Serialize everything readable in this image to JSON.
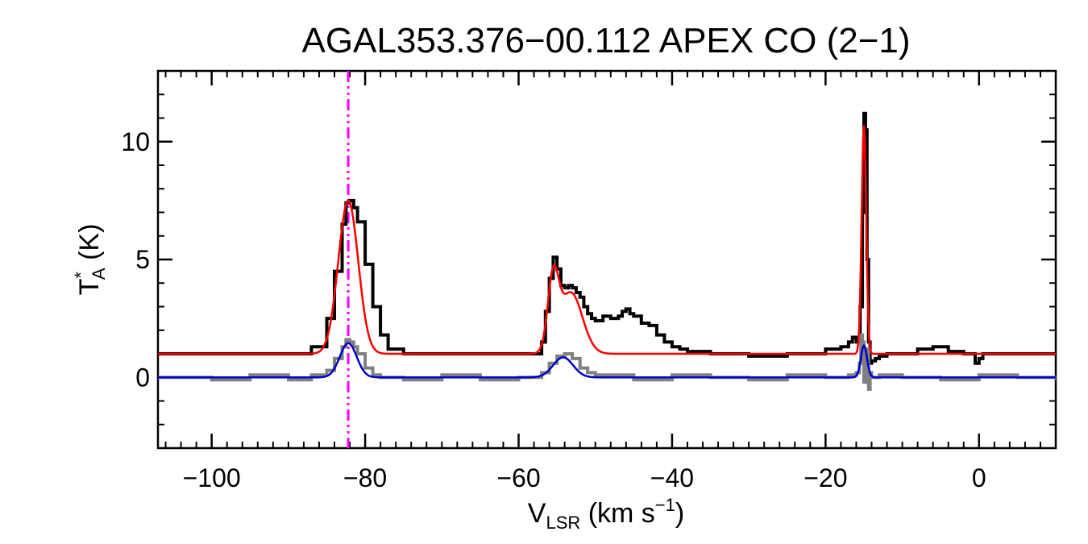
{
  "chart_data": {
    "type": "line",
    "title": "AGAL353.376−00.112  APEX CO (2−1)",
    "xlabel": {
      "main": "V",
      "sub": "LSR",
      "rest": " (km s",
      "sup": "−1",
      "close": ")"
    },
    "ylabel": {
      "main": "T",
      "sup": "*",
      "sub": "A",
      "rest": " (K)"
    },
    "xlim": [
      -107,
      10
    ],
    "ylim": [
      -3,
      13
    ],
    "xticks": [
      -100,
      -80,
      -60,
      -40,
      -20,
      0
    ],
    "xtick_labels": [
      "−100",
      "−80",
      "−60",
      "−40",
      "−20",
      "0"
    ],
    "yticks": [
      0,
      5,
      10
    ],
    "ytick_labels": [
      "0",
      "5",
      "10"
    ],
    "x_minor_step": 2,
    "y_minor_step": 1,
    "grid": false,
    "vline": {
      "x": -82.2,
      "color": "#ff00ff",
      "style": "dash-dot-dot"
    },
    "series": [
      {
        "kind": "step",
        "color": "#000000",
        "x": [
          -107,
          -95,
          -90,
          -87,
          -85,
          -84,
          -83,
          -82.5,
          -82,
          -81.5,
          -81,
          -80,
          -79,
          -78,
          -77,
          -75,
          -70,
          -65,
          -60,
          -58,
          -57,
          -56.5,
          -56,
          -55.5,
          -55,
          -54.5,
          -54,
          -53.5,
          -53,
          -52.5,
          -52,
          -51.5,
          -51,
          -50.5,
          -50,
          -49,
          -48,
          -47,
          -46.5,
          -46,
          -45.5,
          -45,
          -44,
          -43,
          -42,
          -41,
          -40,
          -39,
          -38,
          -35,
          -30,
          -25,
          -20,
          -18,
          -17,
          -16.5,
          -16,
          -15.5,
          -15.2,
          -15,
          -14.8,
          -14.6,
          -14.4,
          -14.2,
          -14,
          -13.5,
          -13,
          -12,
          -11,
          -10,
          -8,
          -6,
          -4,
          -2,
          -1,
          -0.5,
          0,
          0.5,
          1,
          5,
          10
        ],
        "y": [
          1.0,
          1.0,
          1.0,
          1.3,
          2.5,
          4.5,
          6.5,
          7.4,
          7.5,
          7.2,
          6.6,
          4.8,
          3.0,
          1.8,
          1.2,
          1.0,
          1.0,
          1.0,
          1.0,
          1.0,
          1.5,
          2.8,
          4.2,
          5.1,
          4.6,
          3.9,
          3.8,
          3.9,
          3.8,
          3.6,
          3.4,
          3.0,
          2.7,
          2.5,
          2.4,
          2.6,
          2.5,
          2.6,
          2.8,
          2.9,
          2.7,
          2.6,
          2.3,
          2.2,
          1.8,
          1.5,
          1.3,
          1.2,
          1.1,
          1.0,
          0.9,
          1.0,
          1.2,
          1.3,
          1.5,
          1.7,
          1.5,
          3.0,
          7.0,
          11.2,
          10.5,
          5.0,
          1.5,
          0.6,
          0.7,
          0.8,
          0.9,
          1.0,
          1.0,
          1.0,
          1.2,
          1.3,
          1.1,
          1.0,
          1.0,
          0.6,
          0.8,
          1.0,
          1.0,
          1.0,
          1.0
        ]
      },
      {
        "kind": "step",
        "color": "#808080",
        "x": [
          -107,
          -100,
          -95,
          -90,
          -87,
          -85,
          -84,
          -83,
          -82.5,
          -82,
          -81.5,
          -81,
          -80,
          -79,
          -78,
          -75,
          -70,
          -65,
          -60,
          -58,
          -57,
          -56,
          -55,
          -54,
          -53,
          -52,
          -51,
          -50,
          -45,
          -40,
          -35,
          -30,
          -25,
          -20,
          -17,
          -16,
          -15.6,
          -15.4,
          -15.2,
          -15,
          -14.8,
          -14.6,
          -14.4,
          -14.2,
          -14,
          -13,
          -10,
          -5,
          0,
          5,
          10
        ],
        "y": [
          0,
          -0.1,
          0.1,
          -0.1,
          0.1,
          0.3,
          0.8,
          1.3,
          1.6,
          1.5,
          1.3,
          1.0,
          0.4,
          0.1,
          0.0,
          -0.1,
          0.1,
          -0.1,
          0.0,
          0.0,
          0.2,
          0.6,
          0.9,
          1.0,
          0.8,
          0.4,
          0.2,
          0.1,
          -0.1,
          0.1,
          0.0,
          -0.1,
          0.1,
          0.0,
          0.1,
          0.2,
          0.6,
          1.8,
          1.5,
          -0.2,
          0.8,
          1.2,
          -0.5,
          0.2,
          0.0,
          0.1,
          0.0,
          -0.1,
          0.1,
          0.0,
          -0.1
        ]
      },
      {
        "kind": "gaussians",
        "color": "#ff0000",
        "baseline": 1.0,
        "components": [
          {
            "amp": 6.5,
            "center": -82.2,
            "sigma": 1.3
          },
          {
            "amp": 2.9,
            "center": -55.5,
            "sigma": 0.7
          },
          {
            "amp": 2.6,
            "center": -53.2,
            "sigma": 1.5
          },
          {
            "amp": 9.7,
            "center": -15.0,
            "sigma": 0.3
          }
        ]
      },
      {
        "kind": "gaussians",
        "color": "#0000cc",
        "baseline": 0.0,
        "components": [
          {
            "amp": 1.45,
            "center": -82.2,
            "sigma": 1.1
          },
          {
            "amp": 0.85,
            "center": -54.2,
            "sigma": 1.3
          },
          {
            "amp": 1.35,
            "center": -15.0,
            "sigma": 0.4
          }
        ]
      }
    ]
  }
}
